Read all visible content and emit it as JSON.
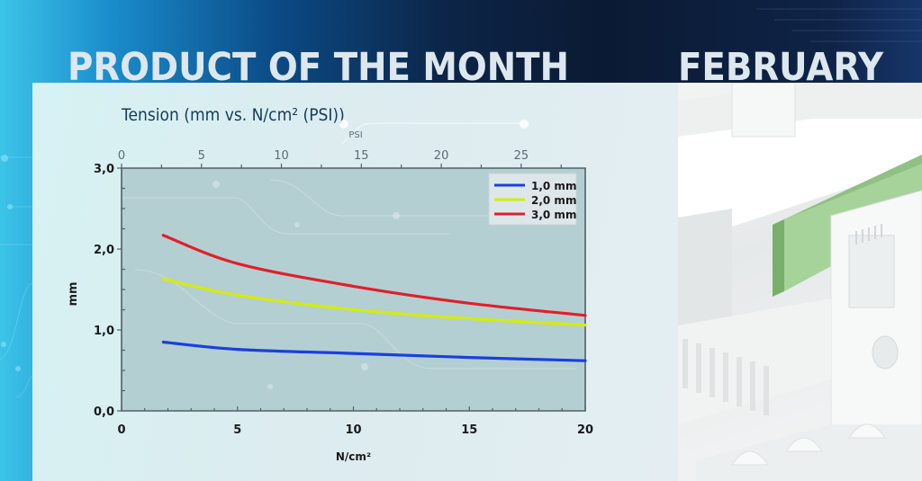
{
  "header": {
    "headline": "PRODUCT OF THE MONTH",
    "month": "FEBRUARY"
  },
  "chart_title": "Tension (mm vs. N/cm² (PSI))",
  "colors": {
    "series_1": "#1a3fe0",
    "series_2": "#d4ec0e",
    "series_3": "#e0202a",
    "plot_bg": "#b4cfd2",
    "title": "#143b5c"
  },
  "chart_data": {
    "type": "line",
    "title": "Tension (mm vs. N/cm² (PSI))",
    "xlabel": "N/cm²",
    "ylabel": "mm",
    "secondary_xlabel": "PSI",
    "xlim": [
      0,
      20
    ],
    "ylim": [
      0,
      3
    ],
    "secondary_xlim": [
      0,
      29
    ],
    "x_ticks": [
      "0",
      "5",
      "10",
      "15",
      "20"
    ],
    "y_ticks": [
      "0,0",
      "1,0",
      "2,0",
      "3,0"
    ],
    "secondary_x_ticks": [
      "0",
      "5",
      "10",
      "15",
      "20",
      "25"
    ],
    "legend_position": "upper right",
    "grid": false,
    "x": [
      1.8,
      5,
      10,
      15,
      20
    ],
    "series": [
      {
        "name": "1,0 mm",
        "values": [
          0.85,
          0.76,
          0.71,
          0.66,
          0.62
        ]
      },
      {
        "name": "2,0 mm",
        "values": [
          1.63,
          1.43,
          1.25,
          1.14,
          1.06
        ]
      },
      {
        "name": "3,0 mm",
        "values": [
          2.17,
          1.82,
          1.54,
          1.33,
          1.18
        ]
      }
    ]
  }
}
